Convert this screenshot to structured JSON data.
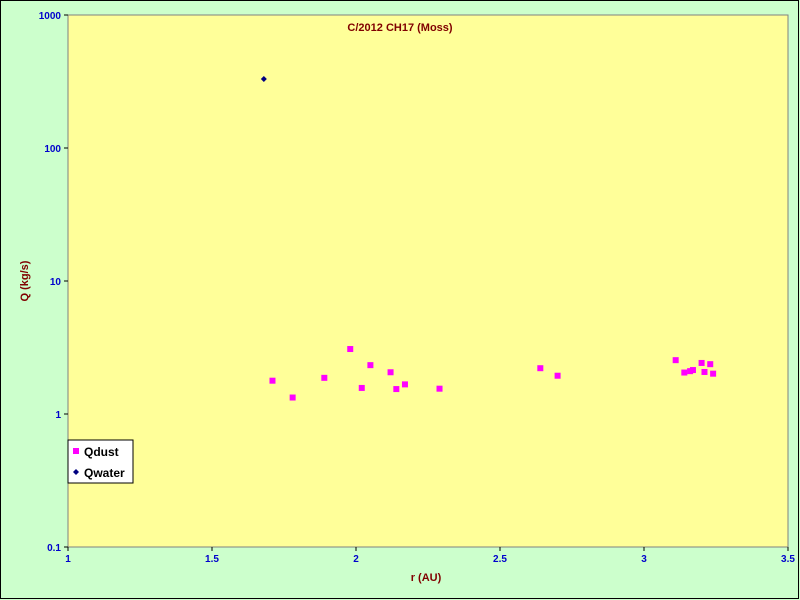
{
  "chart_data": {
    "type": "scatter",
    "title": "C/2012 CH17 (Moss)",
    "xlabel": "r (AU)",
    "ylabel": "Q (kg/s)",
    "xlim": [
      1,
      3.5
    ],
    "ylim": [
      0.1,
      1000
    ],
    "yscale": "log",
    "x_ticks": [
      "1",
      "1.5",
      "2",
      "2.5",
      "3",
      "3.5"
    ],
    "y_ticks": [
      "0.1",
      "1",
      "10",
      "100",
      "1000"
    ],
    "legend_position": "bottom-left",
    "colors": {
      "plot_bg": "#ffff99",
      "page_bg": "#ccffcc"
    },
    "series": [
      {
        "name": "Qdust",
        "marker": "square",
        "color": "#ff00ff",
        "points": [
          [
            1.71,
            1.78
          ],
          [
            1.78,
            1.33
          ],
          [
            1.89,
            1.87
          ],
          [
            1.98,
            3.08
          ],
          [
            2.02,
            1.57
          ],
          [
            2.05,
            2.33
          ],
          [
            2.12,
            2.06
          ],
          [
            2.14,
            1.54
          ],
          [
            2.17,
            1.67
          ],
          [
            2.29,
            1.55
          ],
          [
            2.64,
            2.21
          ],
          [
            2.7,
            1.94
          ],
          [
            3.11,
            2.54
          ],
          [
            3.14,
            2.05
          ],
          [
            3.16,
            2.1
          ],
          [
            3.17,
            2.14
          ],
          [
            3.2,
            2.42
          ],
          [
            3.21,
            2.07
          ],
          [
            3.23,
            2.37
          ],
          [
            3.24,
            2.01
          ]
        ]
      },
      {
        "name": "Qwater",
        "marker": "diamond",
        "color": "#000080",
        "points": [
          [
            1.68,
            330
          ]
        ]
      }
    ]
  }
}
